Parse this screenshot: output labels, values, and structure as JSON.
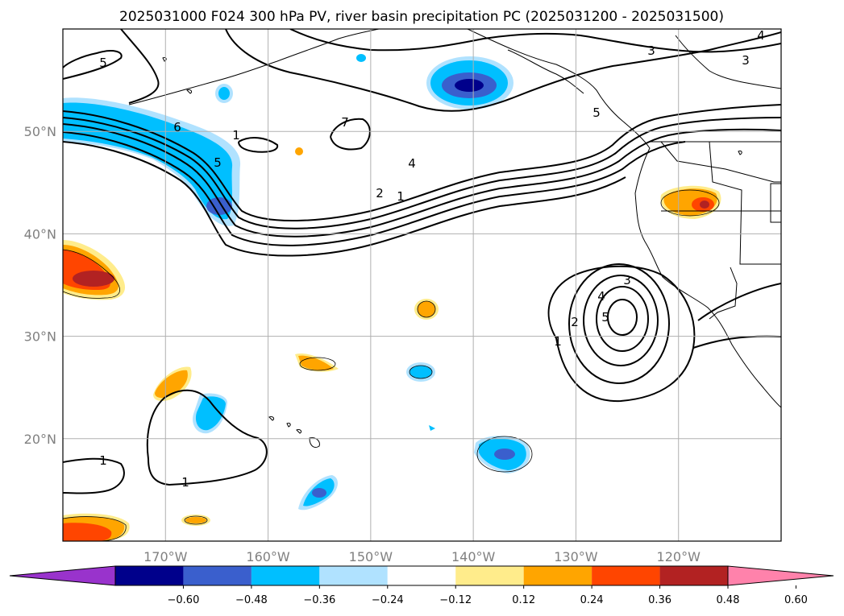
{
  "title": "2025031000 F024 300 hPa PV, river basin precipitation PC (2025031200 - 2025031500)",
  "map": {
    "lon_range": [
      -180,
      -110
    ],
    "lat_range": [
      10,
      60
    ],
    "lat_ticks": [
      {
        "lat": 50,
        "label": "50°N"
      },
      {
        "lat": 40,
        "label": "40°N"
      },
      {
        "lat": 30,
        "label": "30°N"
      },
      {
        "lat": 20,
        "label": "20°N"
      }
    ],
    "lon_ticks": [
      {
        "lon": -170,
        "label": "170°W"
      },
      {
        "lon": -160,
        "label": "160°W"
      },
      {
        "lon": -150,
        "label": "150°W"
      },
      {
        "lon": -140,
        "label": "140°W"
      },
      {
        "lon": -130,
        "label": "130°W"
      },
      {
        "lon": -120,
        "label": "120°W"
      }
    ],
    "gridlines": true,
    "contour_labels": [
      "5",
      "6",
      "1",
      "5",
      "7",
      "4",
      "2",
      "1",
      "3",
      "3",
      "4",
      "3",
      "4",
      "5",
      "2",
      "1",
      "1",
      "1",
      "5"
    ]
  },
  "colorbar": {
    "colors": [
      "#9933cc",
      "#00008b",
      "#3a5fcd",
      "#00bfff",
      "#b0e2ff",
      "#ffffff",
      "#ffec8b",
      "#ffa500",
      "#ff4500",
      "#b22222",
      "#ff82ab"
    ],
    "tick_labels": [
      "−0.60",
      "−0.48",
      "−0.36",
      "−0.24",
      "−0.12",
      "0.12",
      "0.24",
      "0.36",
      "0.48",
      "0.60"
    ]
  }
}
